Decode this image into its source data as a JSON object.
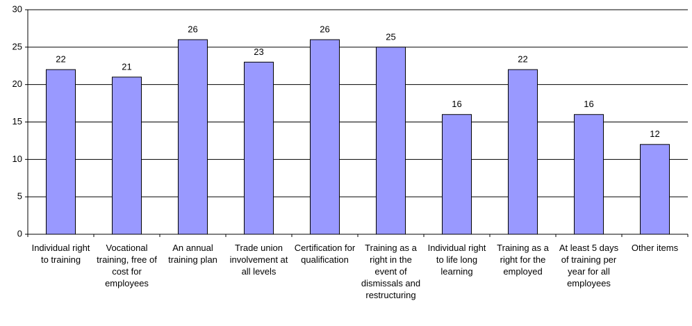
{
  "chart_data": {
    "type": "bar",
    "categories": [
      "Individual right to training",
      "Vocational training, free of cost for employees",
      "An annual training plan",
      "Trade union involvement at all levels",
      "Certification for qualification",
      "Training as a right in the event of dismissals and restructuring",
      "Individual right to life long learning",
      "Training as a right for the employed",
      "At least 5 days of training per year for all employees",
      "Other items"
    ],
    "values": [
      22,
      21,
      26,
      23,
      26,
      25,
      16,
      22,
      16,
      12
    ],
    "color": "#9999ff",
    "ylim": [
      0,
      30
    ],
    "yticks": [
      0,
      5,
      10,
      15,
      20,
      25,
      30
    ],
    "grid": true
  }
}
